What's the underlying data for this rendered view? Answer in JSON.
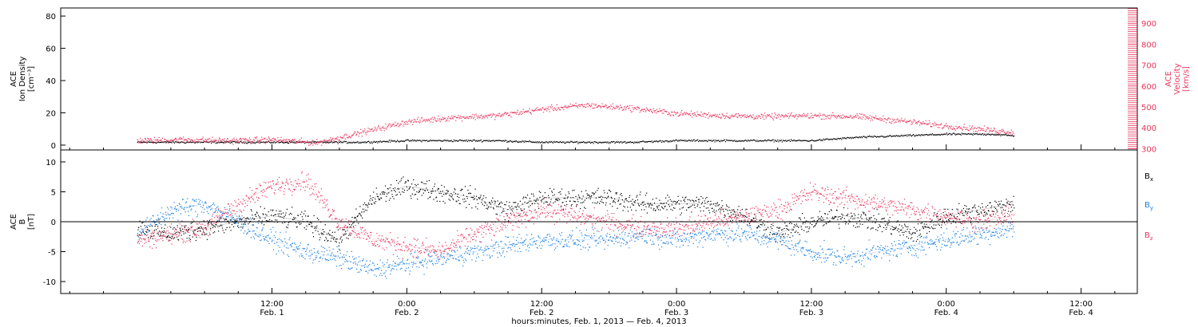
{
  "colors": {
    "black": "#000000",
    "pink": "#e8365e",
    "blue": "#1a7fe0"
  },
  "chart_data": [
    {
      "type": "scatter",
      "panel": "top",
      "left_axis": {
        "label_lines": [
          "ACE",
          "Ion Density",
          "[cm⁻³]"
        ],
        "ylim": [
          -3,
          85
        ],
        "ticks": [
          0,
          20,
          40,
          60,
          80
        ]
      },
      "right_axis": {
        "label_lines": [
          "ACE",
          "Velocity",
          "[km/s]"
        ],
        "ylim": [
          294,
          973
        ],
        "ticks": [
          300,
          400,
          500,
          600,
          700,
          800,
          900
        ]
      },
      "series": [
        {
          "axis": "left",
          "color": "#000000",
          "x": [
            0,
            4,
            8,
            12,
            16,
            20,
            24,
            28,
            32,
            36,
            40,
            44,
            48,
            52,
            56,
            60,
            64,
            68,
            72,
            76,
            78
          ],
          "values": [
            2,
            2,
            2,
            2,
            2,
            2,
            3,
            3,
            3,
            2,
            2,
            2,
            3,
            3,
            3,
            3,
            5,
            6,
            7,
            7,
            6
          ]
        },
        {
          "axis": "right",
          "color": "#e8365e",
          "x": [
            0,
            4,
            8,
            12,
            16,
            20,
            24,
            28,
            32,
            36,
            40,
            44,
            48,
            52,
            56,
            60,
            64,
            68,
            72,
            76,
            78
          ],
          "values": [
            340,
            345,
            340,
            345,
            330,
            380,
            430,
            450,
            460,
            490,
            510,
            495,
            470,
            460,
            455,
            460,
            455,
            435,
            410,
            390,
            380
          ]
        }
      ]
    },
    {
      "type": "scatter",
      "panel": "bottom",
      "left_axis": {
        "label_lines": [
          "ACE",
          "B",
          "[nT]"
        ],
        "ylim": [
          -12,
          12
        ],
        "ticks": [
          -10,
          -5,
          0,
          5,
          10
        ]
      },
      "legend": [
        "Bx",
        "By",
        "Bz"
      ],
      "series": [
        {
          "name": "Bx",
          "color": "#000000",
          "x": [
            0,
            3,
            6,
            9,
            12,
            15,
            18,
            21,
            24,
            27,
            30,
            33,
            36,
            39,
            42,
            45,
            48,
            51,
            54,
            57,
            60,
            63,
            66,
            69,
            72,
            75,
            78
          ],
          "values": [
            -1,
            -2,
            -1,
            0,
            1,
            0,
            -3,
            4,
            6,
            5,
            4,
            2,
            4,
            4,
            4,
            3,
            3,
            3,
            1,
            -2,
            0,
            1,
            0,
            -2,
            1,
            2,
            3
          ]
        },
        {
          "name": "By",
          "color": "#1a7fe0",
          "x": [
            0,
            3,
            6,
            9,
            12,
            15,
            18,
            21,
            24,
            27,
            30,
            33,
            36,
            39,
            42,
            45,
            48,
            51,
            54,
            57,
            60,
            63,
            66,
            69,
            72,
            75,
            78
          ],
          "values": [
            -2,
            2,
            3,
            0,
            -3,
            -5,
            -6,
            -8,
            -7,
            -6,
            -5,
            -4,
            -3,
            -3,
            -3,
            -2,
            -3,
            -2,
            -2,
            -3,
            -5,
            -6,
            -5,
            -4,
            -3,
            -2,
            -1
          ]
        },
        {
          "name": "Bz",
          "color": "#e8365e",
          "x": [
            0,
            3,
            6,
            9,
            12,
            15,
            18,
            21,
            24,
            27,
            30,
            33,
            36,
            39,
            42,
            45,
            48,
            51,
            54,
            57,
            60,
            63,
            66,
            69,
            72,
            75,
            78
          ],
          "values": [
            -3,
            -2,
            -1,
            3,
            6,
            7,
            0,
            -3,
            -4,
            -5,
            -2,
            0,
            2,
            1,
            0,
            -1,
            -1,
            0,
            1,
            2,
            5,
            4,
            3,
            2,
            1,
            0,
            1
          ]
        }
      ]
    }
  ],
  "x_axis": {
    "xlim": [
      -6.8,
      89
    ],
    "ticks": [
      {
        "x": 12,
        "time": "12:00",
        "date": "Feb. 1"
      },
      {
        "x": 24,
        "time": "0:00",
        "date": "Feb. 2"
      },
      {
        "x": 36,
        "time": "12:00",
        "date": "Feb. 2"
      },
      {
        "x": 48,
        "time": "0:00",
        "date": "Feb. 3"
      },
      {
        "x": 60,
        "time": "12:00",
        "date": "Feb. 3"
      },
      {
        "x": 72,
        "time": "0:00",
        "date": "Feb. 4"
      },
      {
        "x": 84,
        "time": "12:00",
        "date": "Feb. 4"
      }
    ],
    "label": "hours:minutes, Feb.  1, 2013 — Feb.  4, 2013"
  }
}
